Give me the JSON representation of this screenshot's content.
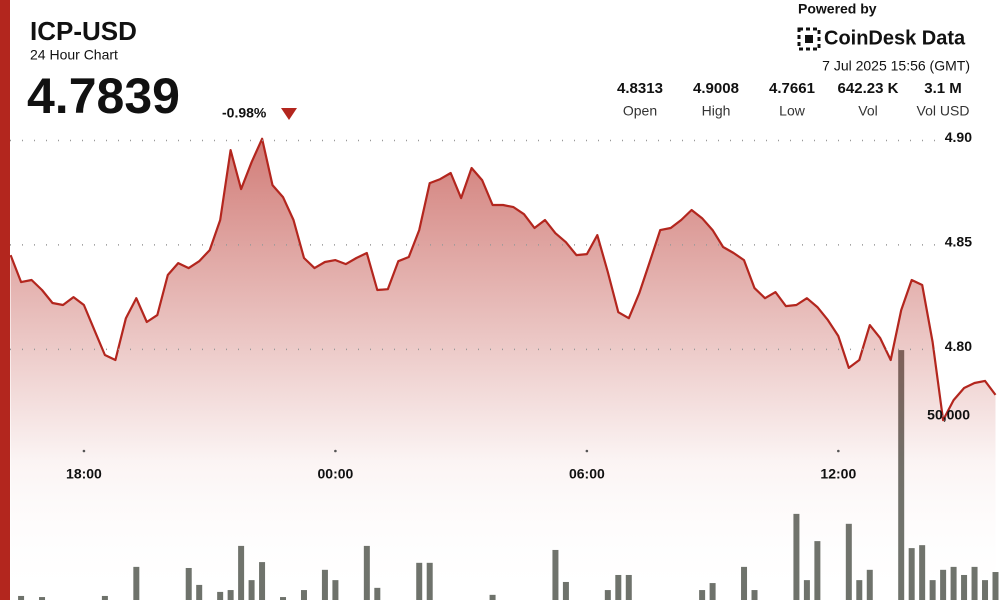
{
  "header": {
    "symbol": "ICP-USD",
    "subtitle": "24 Hour Chart",
    "price": "4.7839",
    "change": "-0.98%",
    "powered_by": "Powered by",
    "brand": "CoinDesk Data",
    "timestamp": "7 Jul 2025 15:56 (GMT)",
    "stats": [
      {
        "value": "4.8313",
        "label": "Open"
      },
      {
        "value": "4.9008",
        "label": "High"
      },
      {
        "value": "4.7661",
        "label": "Low"
      },
      {
        "value": "642.23 K",
        "label": "Vol"
      },
      {
        "value": "3.1 M",
        "label": "Vol USD"
      }
    ]
  },
  "chart_data": {
    "type": "line",
    "categories": [
      null,
      null,
      null,
      null,
      null,
      null,
      null,
      "18:00",
      null,
      null,
      null,
      null,
      null,
      null,
      null,
      null,
      null,
      null,
      null,
      null,
      null,
      null,
      null,
      null,
      null,
      null,
      null,
      null,
      null,
      null,
      null,
      "00:00",
      null,
      null,
      null,
      null,
      null,
      null,
      null,
      null,
      null,
      null,
      null,
      null,
      null,
      null,
      null,
      null,
      null,
      null,
      null,
      null,
      null,
      null,
      null,
      "06:00",
      null,
      null,
      null,
      null,
      null,
      null,
      null,
      null,
      null,
      null,
      null,
      null,
      null,
      null,
      null,
      null,
      null,
      null,
      null,
      null,
      null,
      null,
      null,
      "12:00",
      null,
      null,
      null,
      null,
      null,
      null,
      null,
      null,
      null,
      null,
      null,
      null,
      null,
      null,
      null
    ],
    "series": [
      {
        "type": "area",
        "color": "#b3261e",
        "values": [
          4.8451,
          4.8322,
          4.8332,
          4.8284,
          4.8222,
          4.8212,
          4.825,
          4.8212,
          4.8092,
          4.7973,
          4.7949,
          4.8149,
          4.8245,
          4.8131,
          4.8164,
          4.8356,
          4.8413,
          4.8389,
          4.8422,
          4.8475,
          4.8619,
          4.8954,
          4.8767,
          4.8896,
          4.9008,
          4.8786,
          4.8729,
          4.8619,
          4.8437,
          4.8389,
          4.8418,
          4.8427,
          4.8408,
          4.8437,
          4.8461,
          4.8284,
          4.8288,
          4.8422,
          4.8442,
          4.8571,
          4.8796,
          4.8815,
          4.8844,
          4.8724,
          4.8868,
          4.881,
          4.8691,
          4.8691,
          4.8681,
          4.8647,
          4.8581,
          4.8619,
          4.8556,
          4.8513,
          4.8451,
          4.8456,
          4.8547,
          4.837,
          4.8178,
          4.8149,
          4.8269,
          4.8418,
          4.8571,
          4.8581,
          4.8619,
          4.8667,
          4.8628,
          4.8571,
          4.849,
          4.8461,
          4.8427,
          4.8293,
          4.8245,
          4.8274,
          4.8207,
          4.8212,
          4.8245,
          4.8202,
          4.814,
          4.8064,
          4.7911,
          4.7949,
          4.8116,
          4.8054,
          4.7949,
          4.8188,
          4.8332,
          4.8308,
          4.8035,
          4.7661,
          4.7757,
          4.7815,
          4.7839,
          4.7849,
          4.7782
        ]
      },
      {
        "type": "bar",
        "axis": "y2",
        "color": "#6e726b",
        "values": [
          0,
          1100,
          0,
          800,
          0,
          0,
          0,
          0,
          0,
          1100,
          0,
          0,
          9000,
          0,
          0,
          0,
          0,
          8700,
          4100,
          0,
          2200,
          2700,
          14700,
          5400,
          10300,
          0,
          800,
          0,
          2700,
          0,
          8200,
          5400,
          0,
          0,
          14700,
          3300,
          0,
          0,
          0,
          10100,
          10100,
          0,
          0,
          0,
          0,
          0,
          1400,
          0,
          0,
          0,
          0,
          0,
          13600,
          4900,
          0,
          0,
          0,
          2700,
          6800,
          6800,
          0,
          0,
          0,
          0,
          0,
          0,
          2700,
          4600,
          0,
          0,
          9000,
          2700,
          0,
          0,
          0,
          23400,
          5400,
          16000,
          0,
          0,
          20700,
          5400,
          8200,
          0,
          0,
          67900,
          14100,
          14900,
          5400,
          8200,
          9000,
          6800,
          9000,
          5400,
          7600
        ]
      }
    ],
    "ylim": [
      4.68,
      4.905
    ],
    "yticks": [
      {
        "value": 4.9,
        "label": "4.90"
      },
      {
        "value": 4.85,
        "label": "4.85"
      },
      {
        "value": 4.8,
        "label": "4.80"
      }
    ],
    "y2lim": [
      0,
      127700
    ],
    "y2ticks": [
      {
        "value": 50000,
        "label": "50,000"
      }
    ],
    "grid": true
  }
}
